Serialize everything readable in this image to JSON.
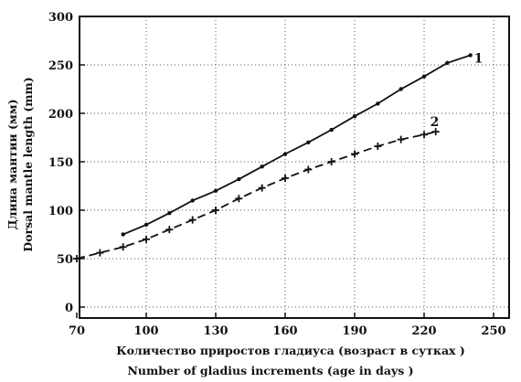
{
  "chart_data": {
    "type": "line",
    "xlabel_ru": "Количество приростов гладиуса (возраст в сутках )",
    "xlabel_en": "Number of gladius increments  (age in days )",
    "ylabel_ru": "Длина мантии (мм)",
    "ylabel_en": "Dorsal mantle length  (mm)",
    "xlim": [
      70,
      250
    ],
    "ylim": [
      0,
      300
    ],
    "xticks": [
      "70",
      "100",
      "130",
      "160",
      "190",
      "220",
      "250"
    ],
    "yticks": [
      "0",
      "50",
      "100",
      "150",
      "200",
      "250",
      "300"
    ],
    "grid": true,
    "series": [
      {
        "name": "1",
        "style": "solid",
        "marker": "dot",
        "x": [
          90,
          100,
          110,
          120,
          130,
          140,
          150,
          160,
          170,
          180,
          190,
          200,
          210,
          220,
          230,
          240
        ],
        "y": [
          75,
          85,
          97,
          110,
          120,
          132,
          145,
          158,
          170,
          183,
          197,
          210,
          225,
          238,
          252,
          260
        ]
      },
      {
        "name": "2",
        "style": "dashed",
        "marker": "plus",
        "x": [
          70,
          80,
          90,
          100,
          110,
          120,
          130,
          140,
          150,
          160,
          170,
          180,
          190,
          200,
          210,
          220,
          225
        ],
        "y": [
          50,
          56,
          62,
          70,
          80,
          90,
          100,
          112,
          123,
          133,
          142,
          150,
          158,
          166,
          173,
          178,
          181
        ]
      }
    ]
  }
}
